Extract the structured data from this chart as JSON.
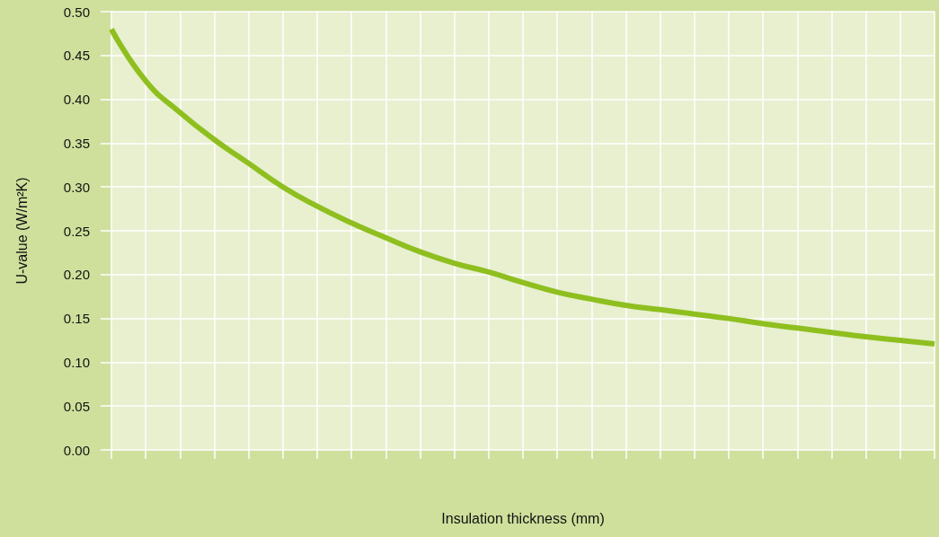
{
  "chart_data": {
    "type": "line",
    "xlabel": "Insulation thickness (mm)",
    "ylabel": "U-value (W/m²K)",
    "categories": [
      null,
      null,
      null,
      null,
      null,
      null,
      null,
      null,
      null,
      null,
      null,
      null,
      null,
      null,
      null,
      null,
      null,
      null,
      null,
      null,
      null,
      null,
      null,
      null,
      null
    ],
    "series": [
      {
        "color": "#8fbf1f",
        "values": [
          0.48,
          0.421,
          0.385,
          0.354,
          0.327,
          0.3,
          0.278,
          0.259,
          0.242,
          0.226,
          0.213,
          0.203,
          0.191,
          0.18,
          0.172,
          0.165,
          0.16,
          0.155,
          0.15,
          0.144,
          0.139,
          0.134,
          0.129,
          0.125,
          0.121
        ]
      }
    ],
    "ylim": [
      0,
      0.5
    ],
    "yticks": [
      {
        "value": 0,
        "label": "0.00"
      },
      0.05,
      {
        "value": 0.1,
        "label": "0.10"
      },
      0.15,
      {
        "value": 0.2,
        "label": "0.20"
      },
      0.25,
      {
        "value": 0.3,
        "label": "0.30"
      },
      0.35,
      {
        "value": 0.4,
        "label": "0.40"
      },
      0.45,
      {
        "value": 0.5,
        "label": "0.50"
      }
    ],
    "grid": true,
    "tick_labels": "y",
    "marker": "none",
    "line_style": "solid"
  }
}
